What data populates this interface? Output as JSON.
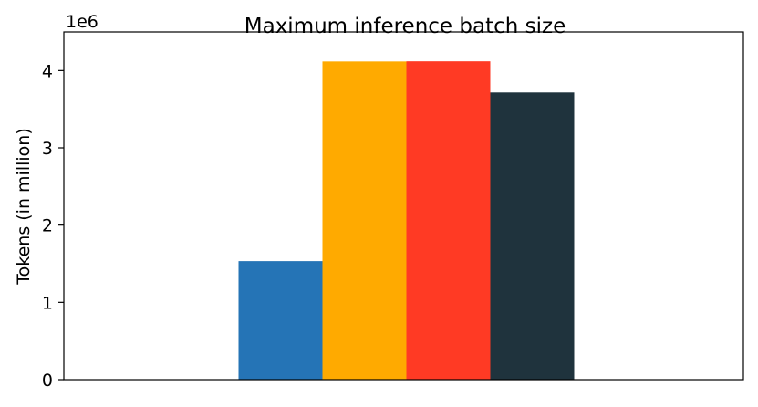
{
  "chart_data": {
    "type": "bar",
    "title": "Maximum inference batch size",
    "ylabel": "Tokens (in million)",
    "y_offset_text": "1e6",
    "categories": [
      null,
      null,
      null,
      null
    ],
    "values": [
      1.534,
      4.118,
      4.12,
      3.717
    ],
    "colors": [
      "#2574b6",
      "#ffaa00",
      "#ff3a24",
      "#1f333d"
    ],
    "ylim": [
      0,
      4.5
    ],
    "yticks": [
      0,
      1,
      2,
      3,
      4
    ],
    "grid": false
  }
}
